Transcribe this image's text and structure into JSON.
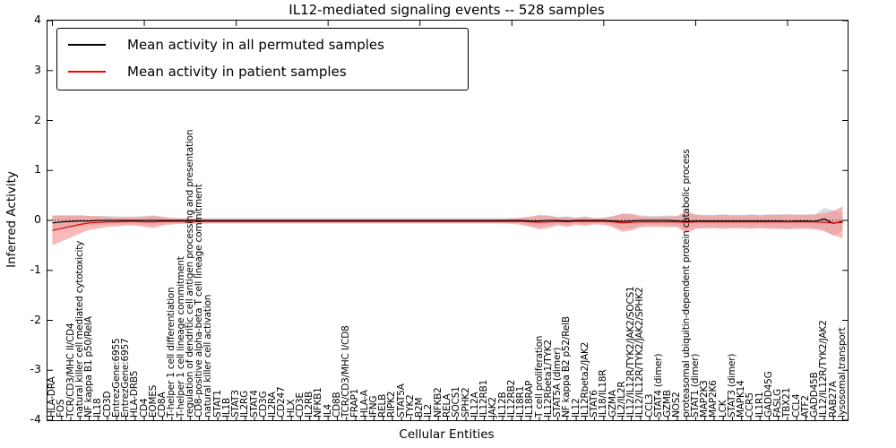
{
  "title": "IL12-mediated signaling events -- 528 samples",
  "axes": {
    "xlabel": "Cellular Entities",
    "ylabel": "Inferred Activity",
    "ylim": [
      -4,
      4
    ],
    "yticks": [
      4,
      3,
      2,
      1,
      0,
      -1,
      -2,
      -3,
      -4
    ]
  },
  "colors": {
    "frame": "#000000",
    "background": "#ffffff",
    "permuted_line": "#000000",
    "patient_line": "#e00000",
    "permuted_band": "#bdbdbd",
    "patient_band": "#f58a8a",
    "zero_line": "#000000"
  },
  "legend": {
    "items": [
      {
        "label": "Mean activity in all permuted samples",
        "color": "#000000"
      },
      {
        "label": "Mean activity in patient samples",
        "color": "#ff0000"
      }
    ]
  },
  "chart_data": {
    "type": "line",
    "title": "IL12-mediated signaling events -- 528 samples",
    "xlabel": "Cellular Entities",
    "ylabel": "Inferred Activity",
    "ylim": [
      -4,
      4
    ],
    "grid": false,
    "legend_position": "upper left",
    "zero_line": {
      "y": 0,
      "style": "dotted"
    },
    "categories": [
      "HLA-DRA",
      "FOS",
      "TCR/CD3/MHC II/CD4",
      "natural killer cell mediated cytotoxicity",
      "NF kappa B1 p50/RelA",
      "IL18",
      "CD3D",
      "EntrezGene:6955",
      "EntrezGene:6957",
      "HLA-DRB5",
      "CD4",
      "EOMES",
      "CD8A",
      "T-helper 1 cell differentiation",
      "T-helper 1 cell lineage commitment",
      "regulation of dendritic cell antigen processing and presentation",
      "CD8-positive alpha-beta T cell lineage commitment",
      "natural killer cell activation",
      "STAT1",
      "IL1B",
      "STAT3",
      "IL2RG",
      "STAT4",
      "CD3G",
      "IL2RA",
      "CD247",
      "HLX",
      "CD3E",
      "IL2RB",
      "NFKB1",
      "IL4",
      "CD8B",
      "TCR/CD3/MHC I/CD8",
      "FRAP1",
      "HLA-A",
      "IFNG",
      "RELB",
      "RIPK2",
      "STAT5A",
      "TYK2",
      "B2M",
      "IL2",
      "NFKB2",
      "RELA",
      "SOCS1",
      "SPHK2",
      "IL12A",
      "IL12RB1",
      "JAK2",
      "IL12B",
      "IL12RB2",
      "IL18R1",
      "IL18RAP",
      "T cell proliferation",
      "IL12Rbeta1/TYK2",
      "STAT5A (dimer)",
      "NF kappa B2 p52/RelB",
      "IL12",
      "IL12Rbeta2/JAK2",
      "STAT6",
      "IL18/IL18R",
      "GZMA",
      "IL2/IL2R",
      "IL12/IL12R/TYK2/JAK2/SOCS1",
      "IL12/IL12R/TYK2/JAK2/SPHK2",
      "CCL3",
      "STAT4 (dimer)",
      "GZMB",
      "NOS2",
      "proteasomal ubiquitin-dependent protein catabolic process",
      "STAT1 (dimer)",
      "MAP2K3",
      "MAP2K6",
      "LCK",
      "STAT3 (dimer)",
      "MAPK14",
      "CCR5",
      "IL1R1",
      "GADD45G",
      "FASLG",
      "TBX21",
      "CCL4",
      "ATF2",
      "GADD45B",
      "IL12/IL12R/TYK2/JAK2",
      "RAB27A",
      "lysosomal transport"
    ],
    "series": [
      {
        "name": "Mean activity in all permuted samples",
        "color": "#000000",
        "values": [
          -0.05,
          -0.03,
          -0.02,
          -0.01,
          -0.01,
          0,
          0,
          0,
          0,
          0,
          0,
          0,
          0,
          0,
          0,
          0,
          0,
          0,
          0,
          0,
          0,
          0,
          0,
          0,
          0,
          0,
          0,
          0,
          0,
          0,
          0,
          0,
          0,
          0,
          0,
          0,
          0,
          0,
          0,
          0,
          0,
          0,
          0,
          0,
          0,
          0,
          0,
          0,
          0,
          0,
          0,
          0,
          -0.01,
          -0.01,
          0,
          0,
          -0.01,
          0,
          0,
          0,
          0,
          -0.01,
          -0.02,
          -0.01,
          0,
          0,
          0,
          0,
          -0.01,
          -0.02,
          -0.01,
          -0.01,
          -0.01,
          -0.01,
          -0.01,
          -0.01,
          -0.01,
          -0.01,
          -0.01,
          -0.01,
          -0.02,
          -0.01,
          -0.01,
          -0.02,
          0.03,
          -0.06,
          -0.02
        ]
      },
      {
        "name": "Mean activity in patient samples",
        "color": "#e00000",
        "values": [
          -0.2,
          -0.16,
          -0.12,
          -0.08,
          -0.05,
          -0.04,
          -0.03,
          -0.03,
          -0.02,
          -0.02,
          -0.03,
          -0.03,
          -0.02,
          -0.02,
          -0.02,
          -0.02,
          -0.02,
          -0.02,
          -0.02,
          -0.02,
          -0.02,
          -0.02,
          -0.02,
          -0.02,
          -0.02,
          -0.02,
          -0.02,
          -0.02,
          -0.02,
          -0.02,
          -0.02,
          -0.02,
          -0.02,
          -0.02,
          -0.02,
          -0.02,
          -0.02,
          -0.02,
          -0.02,
          -0.02,
          -0.02,
          -0.02,
          -0.02,
          -0.02,
          -0.02,
          -0.02,
          -0.02,
          -0.02,
          -0.02,
          -0.02,
          -0.02,
          -0.02,
          -0.03,
          -0.04,
          -0.03,
          -0.02,
          -0.03,
          -0.02,
          -0.02,
          -0.02,
          -0.02,
          -0.03,
          -0.05,
          -0.04,
          -0.03,
          -0.03,
          -0.03,
          -0.03,
          -0.03,
          -0.04,
          -0.03,
          -0.03,
          -0.03,
          -0.03,
          -0.03,
          -0.03,
          -0.03,
          -0.03,
          -0.03,
          -0.03,
          -0.03,
          -0.03,
          -0.03,
          -0.03,
          -0.04,
          -0.05,
          -0.04
        ]
      }
    ],
    "bands": [
      {
        "name": "permuted samples std band",
        "color": "#bdbdbd",
        "opacity": 0.55,
        "half_widths": [
          0.14,
          0.13,
          0.12,
          0.11,
          0.1,
          0.09,
          0.09,
          0.08,
          0.08,
          0.08,
          0.09,
          0.1,
          0.08,
          0.06,
          0.05,
          0.05,
          0.05,
          0.05,
          0.05,
          0.05,
          0.05,
          0.05,
          0.05,
          0.05,
          0.05,
          0.05,
          0.05,
          0.05,
          0.05,
          0.05,
          0.05,
          0.05,
          0.05,
          0.05,
          0.05,
          0.05,
          0.05,
          0.05,
          0.05,
          0.05,
          0.05,
          0.05,
          0.05,
          0.05,
          0.05,
          0.05,
          0.05,
          0.05,
          0.05,
          0.05,
          0.05,
          0.06,
          0.09,
          0.12,
          0.1,
          0.07,
          0.09,
          0.06,
          0.08,
          0.05,
          0.06,
          0.1,
          0.16,
          0.15,
          0.1,
          0.09,
          0.09,
          0.1,
          0.1,
          0.2,
          0.13,
          0.12,
          0.12,
          0.13,
          0.12,
          0.12,
          0.13,
          0.12,
          0.13,
          0.13,
          0.14,
          0.13,
          0.13,
          0.14,
          0.22,
          0.26,
          0.18
        ]
      },
      {
        "name": "patient samples std band",
        "color": "#f58a8a",
        "opacity": 0.6,
        "half_widths": [
          0.3,
          0.26,
          0.22,
          0.18,
          0.14,
          0.12,
          0.1,
          0.09,
          0.08,
          0.08,
          0.1,
          0.12,
          0.08,
          0.06,
          0.05,
          0.05,
          0.05,
          0.04,
          0.04,
          0.04,
          0.04,
          0.04,
          0.04,
          0.04,
          0.04,
          0.04,
          0.04,
          0.04,
          0.04,
          0.04,
          0.04,
          0.04,
          0.04,
          0.04,
          0.04,
          0.04,
          0.04,
          0.04,
          0.04,
          0.04,
          0.04,
          0.04,
          0.04,
          0.04,
          0.04,
          0.04,
          0.04,
          0.04,
          0.04,
          0.04,
          0.05,
          0.07,
          0.1,
          0.14,
          0.12,
          0.08,
          0.1,
          0.07,
          0.09,
          0.06,
          0.07,
          0.11,
          0.18,
          0.16,
          0.11,
          0.1,
          0.1,
          0.11,
          0.11,
          0.22,
          0.14,
          0.13,
          0.13,
          0.14,
          0.13,
          0.13,
          0.14,
          0.13,
          0.14,
          0.14,
          0.15,
          0.14,
          0.14,
          0.15,
          0.18,
          0.24,
          0.32
        ]
      }
    ]
  }
}
